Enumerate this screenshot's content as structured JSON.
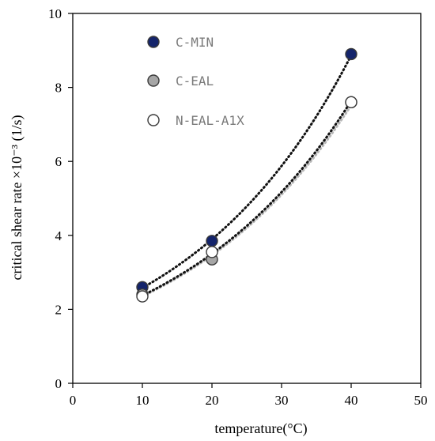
{
  "chart_data": {
    "type": "scatter",
    "xlabel": "temperature(°C)",
    "ylabel": "critical shear rate ×10⁻³  (1/s)",
    "xlim": [
      0,
      50
    ],
    "ylim": [
      0,
      10
    ],
    "xticks": [
      0,
      10,
      20,
      30,
      40,
      50
    ],
    "yticks": [
      0,
      2,
      4,
      6,
      8,
      10
    ],
    "grid": false,
    "legend_position": "top-left",
    "trendline": "exponential, dotted",
    "series": [
      {
        "name": "C-MIN",
        "color": "#14246b",
        "x": [
          10,
          20,
          40
        ],
        "y": [
          2.6,
          3.85,
          8.9
        ]
      },
      {
        "name": "C-EAL",
        "color": "#a6a6a6",
        "x": [
          10,
          20,
          40
        ],
        "y": [
          2.4,
          3.35,
          7.6
        ]
      },
      {
        "name": "N-EAL-A1X",
        "color": "#ffffff",
        "x": [
          10,
          20,
          40
        ],
        "y": [
          2.35,
          3.55,
          7.6
        ]
      }
    ]
  }
}
